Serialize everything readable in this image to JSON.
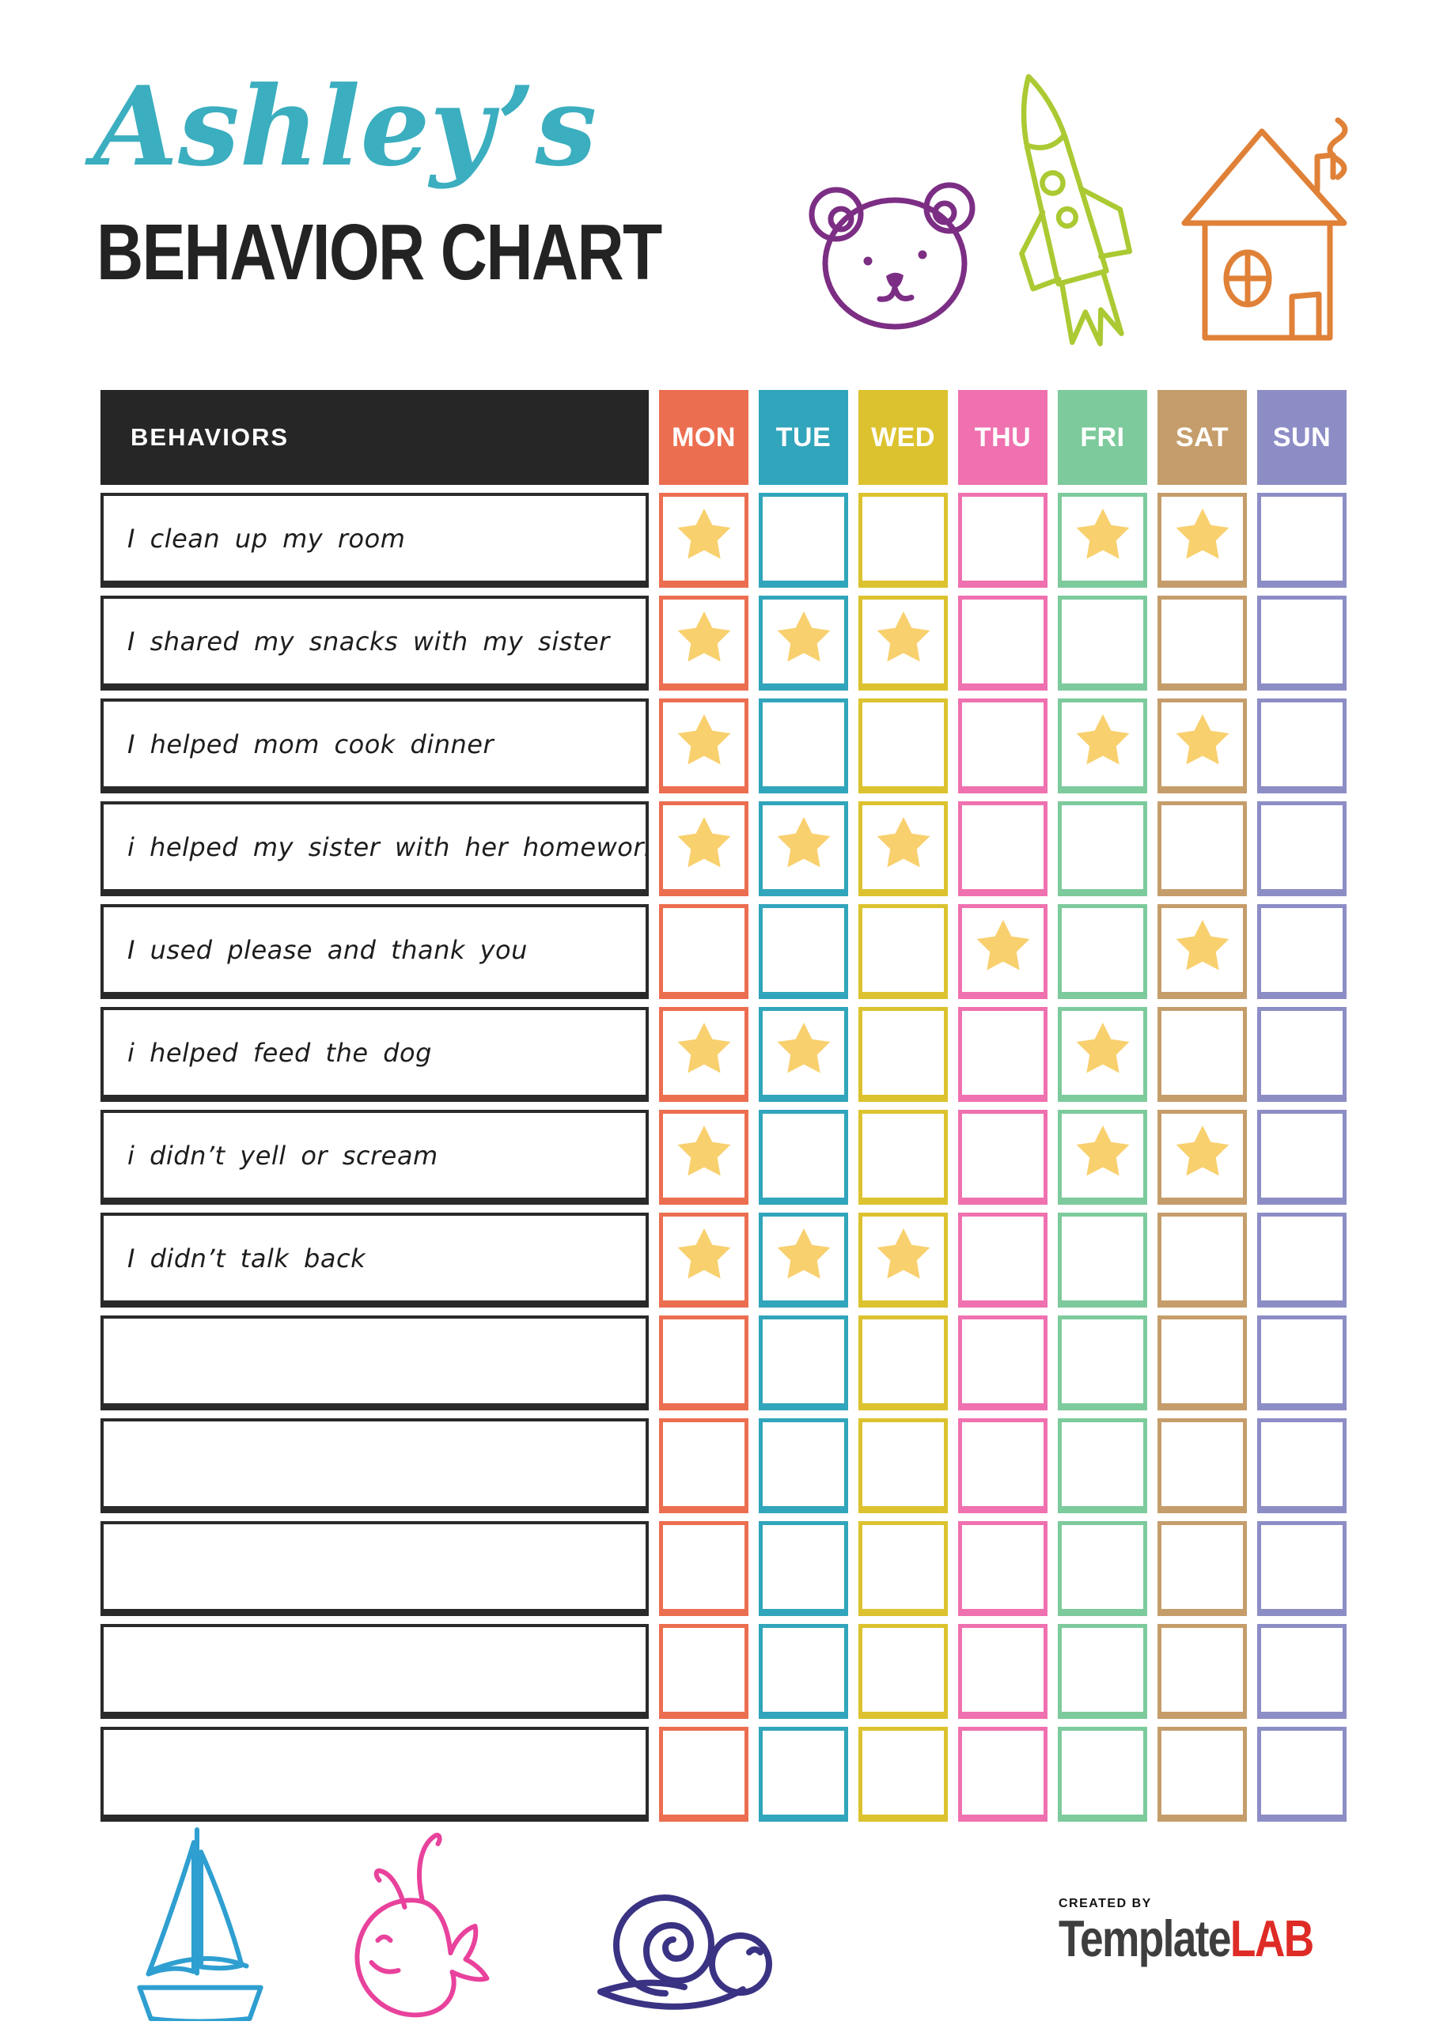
{
  "header": {
    "title_script": "Ashley’s",
    "title_main": "BEHAVIOR CHART"
  },
  "table": {
    "behaviors_header": "BEHAVIORS",
    "behaviors_header_bg": "#262626",
    "star_color": "#F8D06E",
    "days": [
      {
        "label": "MON",
        "color": "#EC6E50"
      },
      {
        "label": "TUE",
        "color": "#31A5BB"
      },
      {
        "label": "WED",
        "color": "#DCC22F"
      },
      {
        "label": "THU",
        "color": "#EF71AF"
      },
      {
        "label": "FRI",
        "color": "#7DCA9C"
      },
      {
        "label": "SAT",
        "color": "#C59D6B"
      },
      {
        "label": "SUN",
        "color": "#8D8DC6"
      }
    ],
    "rows": [
      {
        "label": "I clean up my room",
        "stars": [
          1,
          0,
          0,
          0,
          1,
          1,
          0
        ]
      },
      {
        "label": "I shared my snacks with my sister",
        "stars": [
          1,
          1,
          1,
          0,
          0,
          0,
          0
        ]
      },
      {
        "label": "I helped mom cook dinner",
        "stars": [
          1,
          0,
          0,
          0,
          1,
          1,
          0
        ]
      },
      {
        "label": "i helped my sister with her homework",
        "stars": [
          1,
          1,
          1,
          0,
          0,
          0,
          0
        ]
      },
      {
        "label": "I used please and thank you",
        "stars": [
          0,
          0,
          0,
          1,
          0,
          1,
          0
        ]
      },
      {
        "label": "i helped feed the dog",
        "stars": [
          1,
          1,
          0,
          0,
          1,
          0,
          0
        ]
      },
      {
        "label": "i didn’t yell or scream",
        "stars": [
          1,
          0,
          0,
          0,
          1,
          1,
          0
        ]
      },
      {
        "label": "I didn’t talk back",
        "stars": [
          1,
          1,
          1,
          0,
          0,
          0,
          0
        ]
      },
      {
        "label": "",
        "stars": [
          0,
          0,
          0,
          0,
          0,
          0,
          0
        ]
      },
      {
        "label": "",
        "stars": [
          0,
          0,
          0,
          0,
          0,
          0,
          0
        ]
      },
      {
        "label": "",
        "stars": [
          0,
          0,
          0,
          0,
          0,
          0,
          0
        ]
      },
      {
        "label": "",
        "stars": [
          0,
          0,
          0,
          0,
          0,
          0,
          0
        ]
      },
      {
        "label": "",
        "stars": [
          0,
          0,
          0,
          0,
          0,
          0,
          0
        ]
      }
    ]
  },
  "footer": {
    "created_by": "CREATED BY",
    "brand_part1": "Template",
    "brand_part2": "LAB",
    "brand_color1": "#3E3E3E",
    "brand_color2": "#DE2B26"
  },
  "colors": {
    "title_script": "#3BAEBF",
    "title_main": "#232323",
    "bear": "#7C2E84",
    "rocket": "#ABC932",
    "house": "#E08138",
    "sailboat": "#2E9FD0",
    "whale": "#E8429C",
    "snail": "#3A3383"
  }
}
